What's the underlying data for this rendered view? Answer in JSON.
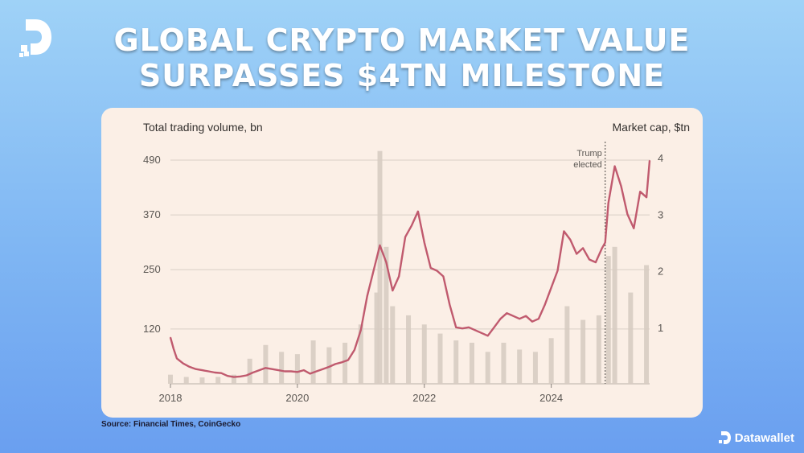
{
  "header": {
    "title_line1": "GLOBAL CRYPTO MARKET VALUE",
    "title_line2": "SURPASSES $4TN MILESTONE"
  },
  "source": "Source: Financial Times, CoinGecko",
  "brand": {
    "name": "Datawallet"
  },
  "icons": {
    "logo": "datawallet-logo-icon",
    "brand": "datawallet-mark-icon"
  },
  "colors": {
    "background": "#8cc3f5",
    "card": "#fbefe6",
    "market_cap_line": "#c05a6e",
    "volume_bars": "#d7ccc2",
    "gridline": "#d9cfc6"
  },
  "chart_data": {
    "type": "line",
    "left_axis_title": "Total trading volume, bn",
    "right_axis_title": "Market cap, $tn",
    "x_ticks": [
      "2018",
      "2020",
      "2022",
      "2024"
    ],
    "x_range": [
      2018.0,
      2025.55
    ],
    "left_ticks": [
      120,
      250,
      370,
      490
    ],
    "left_range": [
      0,
      520
    ],
    "right_ticks": [
      1,
      2,
      3,
      4
    ],
    "right_range": [
      0,
      4.2
    ],
    "grid": true,
    "annotation": {
      "label_line1": "Trump",
      "label_line2": "elected",
      "x": 2024.85
    },
    "series": [
      {
        "name": "Market cap",
        "axis": "right",
        "x": [
          2018.0,
          2018.05,
          2018.1,
          2018.2,
          2018.3,
          2018.4,
          2018.5,
          2018.6,
          2018.7,
          2018.8,
          2018.9,
          2019.0,
          2019.1,
          2019.2,
          2019.3,
          2019.4,
          2019.5,
          2019.6,
          2019.7,
          2019.8,
          2019.9,
          2020.0,
          2020.1,
          2020.2,
          2020.3,
          2020.4,
          2020.5,
          2020.6,
          2020.7,
          2020.8,
          2020.9,
          2021.0,
          2021.1,
          2021.2,
          2021.3,
          2021.4,
          2021.5,
          2021.6,
          2021.7,
          2021.8,
          2021.9,
          2022.0,
          2022.1,
          2022.2,
          2022.3,
          2022.4,
          2022.5,
          2022.6,
          2022.7,
          2022.8,
          2022.9,
          2023.0,
          2023.1,
          2023.2,
          2023.3,
          2023.4,
          2023.5,
          2023.6,
          2023.7,
          2023.8,
          2023.9,
          2024.0,
          2024.1,
          2024.2,
          2024.3,
          2024.4,
          2024.5,
          2024.6,
          2024.7,
          2024.8,
          2024.85,
          2024.9,
          2025.0,
          2025.1,
          2025.2,
          2025.3,
          2025.4,
          2025.5,
          2025.55
        ],
        "values": [
          0.82,
          0.62,
          0.45,
          0.36,
          0.3,
          0.26,
          0.24,
          0.22,
          0.2,
          0.19,
          0.14,
          0.12,
          0.13,
          0.15,
          0.2,
          0.24,
          0.28,
          0.26,
          0.24,
          0.22,
          0.22,
          0.21,
          0.24,
          0.18,
          0.22,
          0.26,
          0.3,
          0.35,
          0.38,
          0.42,
          0.6,
          0.95,
          1.55,
          2.0,
          2.45,
          2.15,
          1.65,
          1.9,
          2.6,
          2.8,
          3.05,
          2.5,
          2.05,
          2.0,
          1.9,
          1.4,
          1.0,
          0.98,
          1.0,
          0.95,
          0.9,
          0.85,
          1.0,
          1.15,
          1.25,
          1.2,
          1.15,
          1.2,
          1.1,
          1.15,
          1.4,
          1.7,
          2.0,
          2.7,
          2.55,
          2.3,
          2.4,
          2.2,
          2.15,
          2.4,
          2.5,
          3.2,
          3.85,
          3.5,
          3.0,
          2.75,
          3.4,
          3.3,
          3.95
        ]
      },
      {
        "name": "Total trading volume",
        "axis": "left",
        "x": [
          2018.0,
          2018.25,
          2018.5,
          2018.75,
          2019.0,
          2019.25,
          2019.5,
          2019.75,
          2020.0,
          2020.25,
          2020.5,
          2020.75,
          2021.0,
          2021.25,
          2021.3,
          2021.4,
          2021.5,
          2021.75,
          2022.0,
          2022.25,
          2022.5,
          2022.75,
          2023.0,
          2023.25,
          2023.5,
          2023.75,
          2024.0,
          2024.25,
          2024.5,
          2024.75,
          2024.9,
          2025.0,
          2025.25,
          2025.5
        ],
        "values": [
          20,
          15,
          14,
          15,
          20,
          55,
          85,
          70,
          65,
          95,
          80,
          90,
          130,
          200,
          510,
          300,
          170,
          150,
          130,
          110,
          95,
          90,
          70,
          90,
          75,
          70,
          100,
          170,
          140,
          150,
          280,
          300,
          200,
          260
        ]
      }
    ]
  }
}
